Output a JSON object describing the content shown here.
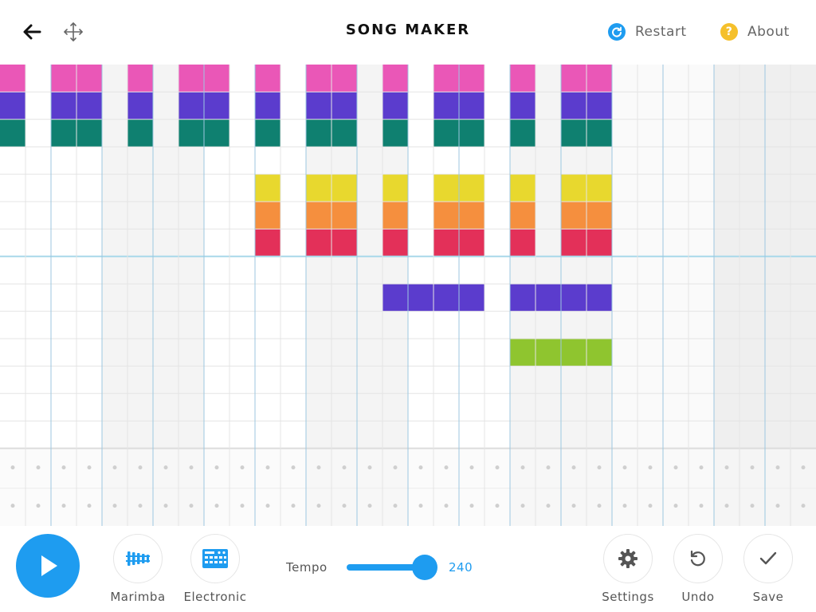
{
  "header": {
    "title": "SONG MAKER",
    "back_icon": "arrow-left-icon",
    "move_icon": "move-arrows-icon",
    "restart_label": "Restart",
    "about_label": "About",
    "restart_color": "#1e9cf0",
    "about_color": "#f5c02b"
  },
  "grid": {
    "columns": 32,
    "melody_rows": 14,
    "percussion_rows": 2,
    "active_columns": 24,
    "row_colors": [
      "#ea57b7",
      "#5b3ccd",
      "#0f8070",
      "#f2a93b",
      "#e8d82e",
      "#f58f3e",
      "#e33059",
      "#5b3ccd",
      "#5b3ccd",
      "#5b3ccd",
      "#8fc52f",
      "#8fc52f",
      "#ea57b7",
      "#5b3ccd"
    ],
    "melody_notes": [
      [
        0,
        0
      ],
      [
        0,
        2
      ],
      [
        0,
        3
      ],
      [
        0,
        5
      ],
      [
        0,
        7
      ],
      [
        0,
        8
      ],
      [
        0,
        10
      ],
      [
        0,
        12
      ],
      [
        0,
        13
      ],
      [
        0,
        15
      ],
      [
        0,
        17
      ],
      [
        0,
        18
      ],
      [
        0,
        20
      ],
      [
        0,
        22
      ],
      [
        0,
        23
      ],
      [
        1,
        0
      ],
      [
        1,
        2
      ],
      [
        1,
        3
      ],
      [
        1,
        5
      ],
      [
        1,
        7
      ],
      [
        1,
        8
      ],
      [
        1,
        10
      ],
      [
        1,
        12
      ],
      [
        1,
        13
      ],
      [
        1,
        15
      ],
      [
        1,
        17
      ],
      [
        1,
        18
      ],
      [
        1,
        20
      ],
      [
        1,
        22
      ],
      [
        1,
        23
      ],
      [
        2,
        0
      ],
      [
        2,
        2
      ],
      [
        2,
        3
      ],
      [
        2,
        5
      ],
      [
        2,
        7
      ],
      [
        2,
        8
      ],
      [
        2,
        10
      ],
      [
        2,
        12
      ],
      [
        2,
        13
      ],
      [
        2,
        15
      ],
      [
        2,
        17
      ],
      [
        2,
        18
      ],
      [
        2,
        20
      ],
      [
        2,
        22
      ],
      [
        2,
        23
      ],
      [
        4,
        10
      ],
      [
        4,
        12
      ],
      [
        4,
        13
      ],
      [
        4,
        15
      ],
      [
        4,
        17
      ],
      [
        4,
        18
      ],
      [
        4,
        20
      ],
      [
        4,
        22
      ],
      [
        4,
        23
      ],
      [
        5,
        10
      ],
      [
        5,
        12
      ],
      [
        5,
        13
      ],
      [
        5,
        15
      ],
      [
        5,
        17
      ],
      [
        5,
        18
      ],
      [
        5,
        20
      ],
      [
        5,
        22
      ],
      [
        5,
        23
      ],
      [
        6,
        10
      ],
      [
        6,
        12
      ],
      [
        6,
        13
      ],
      [
        6,
        15
      ],
      [
        6,
        17
      ],
      [
        6,
        18
      ],
      [
        6,
        20
      ],
      [
        6,
        22
      ],
      [
        6,
        23
      ],
      [
        8,
        15
      ],
      [
        8,
        16
      ],
      [
        8,
        17
      ],
      [
        8,
        18
      ],
      [
        8,
        20
      ],
      [
        8,
        21
      ],
      [
        8,
        22
      ],
      [
        8,
        23
      ],
      [
        10,
        20
      ],
      [
        10,
        21
      ],
      [
        10,
        22
      ],
      [
        10,
        23
      ]
    ]
  },
  "toolbar": {
    "play_icon": "play-icon",
    "marimba_label": "Marimba",
    "electronic_label": "Electronic",
    "tempo_label": "Tempo",
    "tempo_value": "240",
    "tempo_min": 50,
    "tempo_max": 240,
    "settings_label": "Settings",
    "undo_label": "Undo",
    "save_label": "Save",
    "accent_color": "#1e9cf0"
  }
}
